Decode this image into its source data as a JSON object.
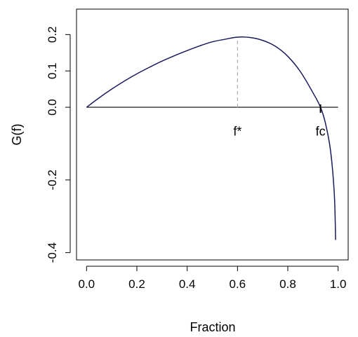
{
  "chart_data": {
    "type": "line",
    "title": "",
    "xlabel": "Fraction",
    "ylabel": "G(f)",
    "xlim": [
      -0.04,
      1.04
    ],
    "ylim": [
      -0.42,
      0.27
    ],
    "x_ticks": [
      0.0,
      0.2,
      0.4,
      0.6,
      0.8,
      1.0
    ],
    "x_tick_labels": [
      "0.0",
      "0.2",
      "0.4",
      "0.6",
      "0.8",
      "1.0"
    ],
    "y_ticks": [
      -0.4,
      -0.2,
      0.0,
      0.1,
      0.2
    ],
    "y_tick_labels": [
      "-0.4",
      "-0.2",
      "0.0",
      "0.1",
      "0.2"
    ],
    "grid": false,
    "legend": "none",
    "series": [
      {
        "color": "#1a1a5e",
        "points": [
          [
            0.0,
            0.0
          ],
          [
            0.05,
            0.026
          ],
          [
            0.1,
            0.05
          ],
          [
            0.15,
            0.072
          ],
          [
            0.2,
            0.092
          ],
          [
            0.25,
            0.11
          ],
          [
            0.3,
            0.127
          ],
          [
            0.35,
            0.142
          ],
          [
            0.4,
            0.156
          ],
          [
            0.45,
            0.169
          ],
          [
            0.5,
            0.18
          ],
          [
            0.55,
            0.187
          ],
          [
            0.6,
            0.193
          ],
          [
            0.65,
            0.192
          ],
          [
            0.7,
            0.184
          ],
          [
            0.75,
            0.168
          ],
          [
            0.8,
            0.14
          ],
          [
            0.85,
            0.098
          ],
          [
            0.9,
            0.04
          ],
          [
            0.93,
            0.0
          ],
          [
            0.95,
            -0.045
          ],
          [
            0.97,
            -0.12
          ],
          [
            0.985,
            -0.24
          ],
          [
            0.99,
            -0.365
          ]
        ]
      }
    ],
    "reference_lines": [
      {
        "type": "horizontal",
        "y": 0.0,
        "from_x": 0.0,
        "to_x": 1.0,
        "color": "#000000",
        "style": "solid"
      },
      {
        "type": "vertical",
        "x": 0.6,
        "from_y": 0.0,
        "to_y": 0.193,
        "color": "#aaaaaa",
        "style": "dashed"
      }
    ],
    "annotations": [
      {
        "text": "f*",
        "x": 0.6,
        "y": -0.078
      },
      {
        "text": "fc",
        "x": 0.93,
        "y": -0.078
      }
    ],
    "markers": [
      {
        "x": 0.93,
        "y": 0.0
      }
    ]
  }
}
